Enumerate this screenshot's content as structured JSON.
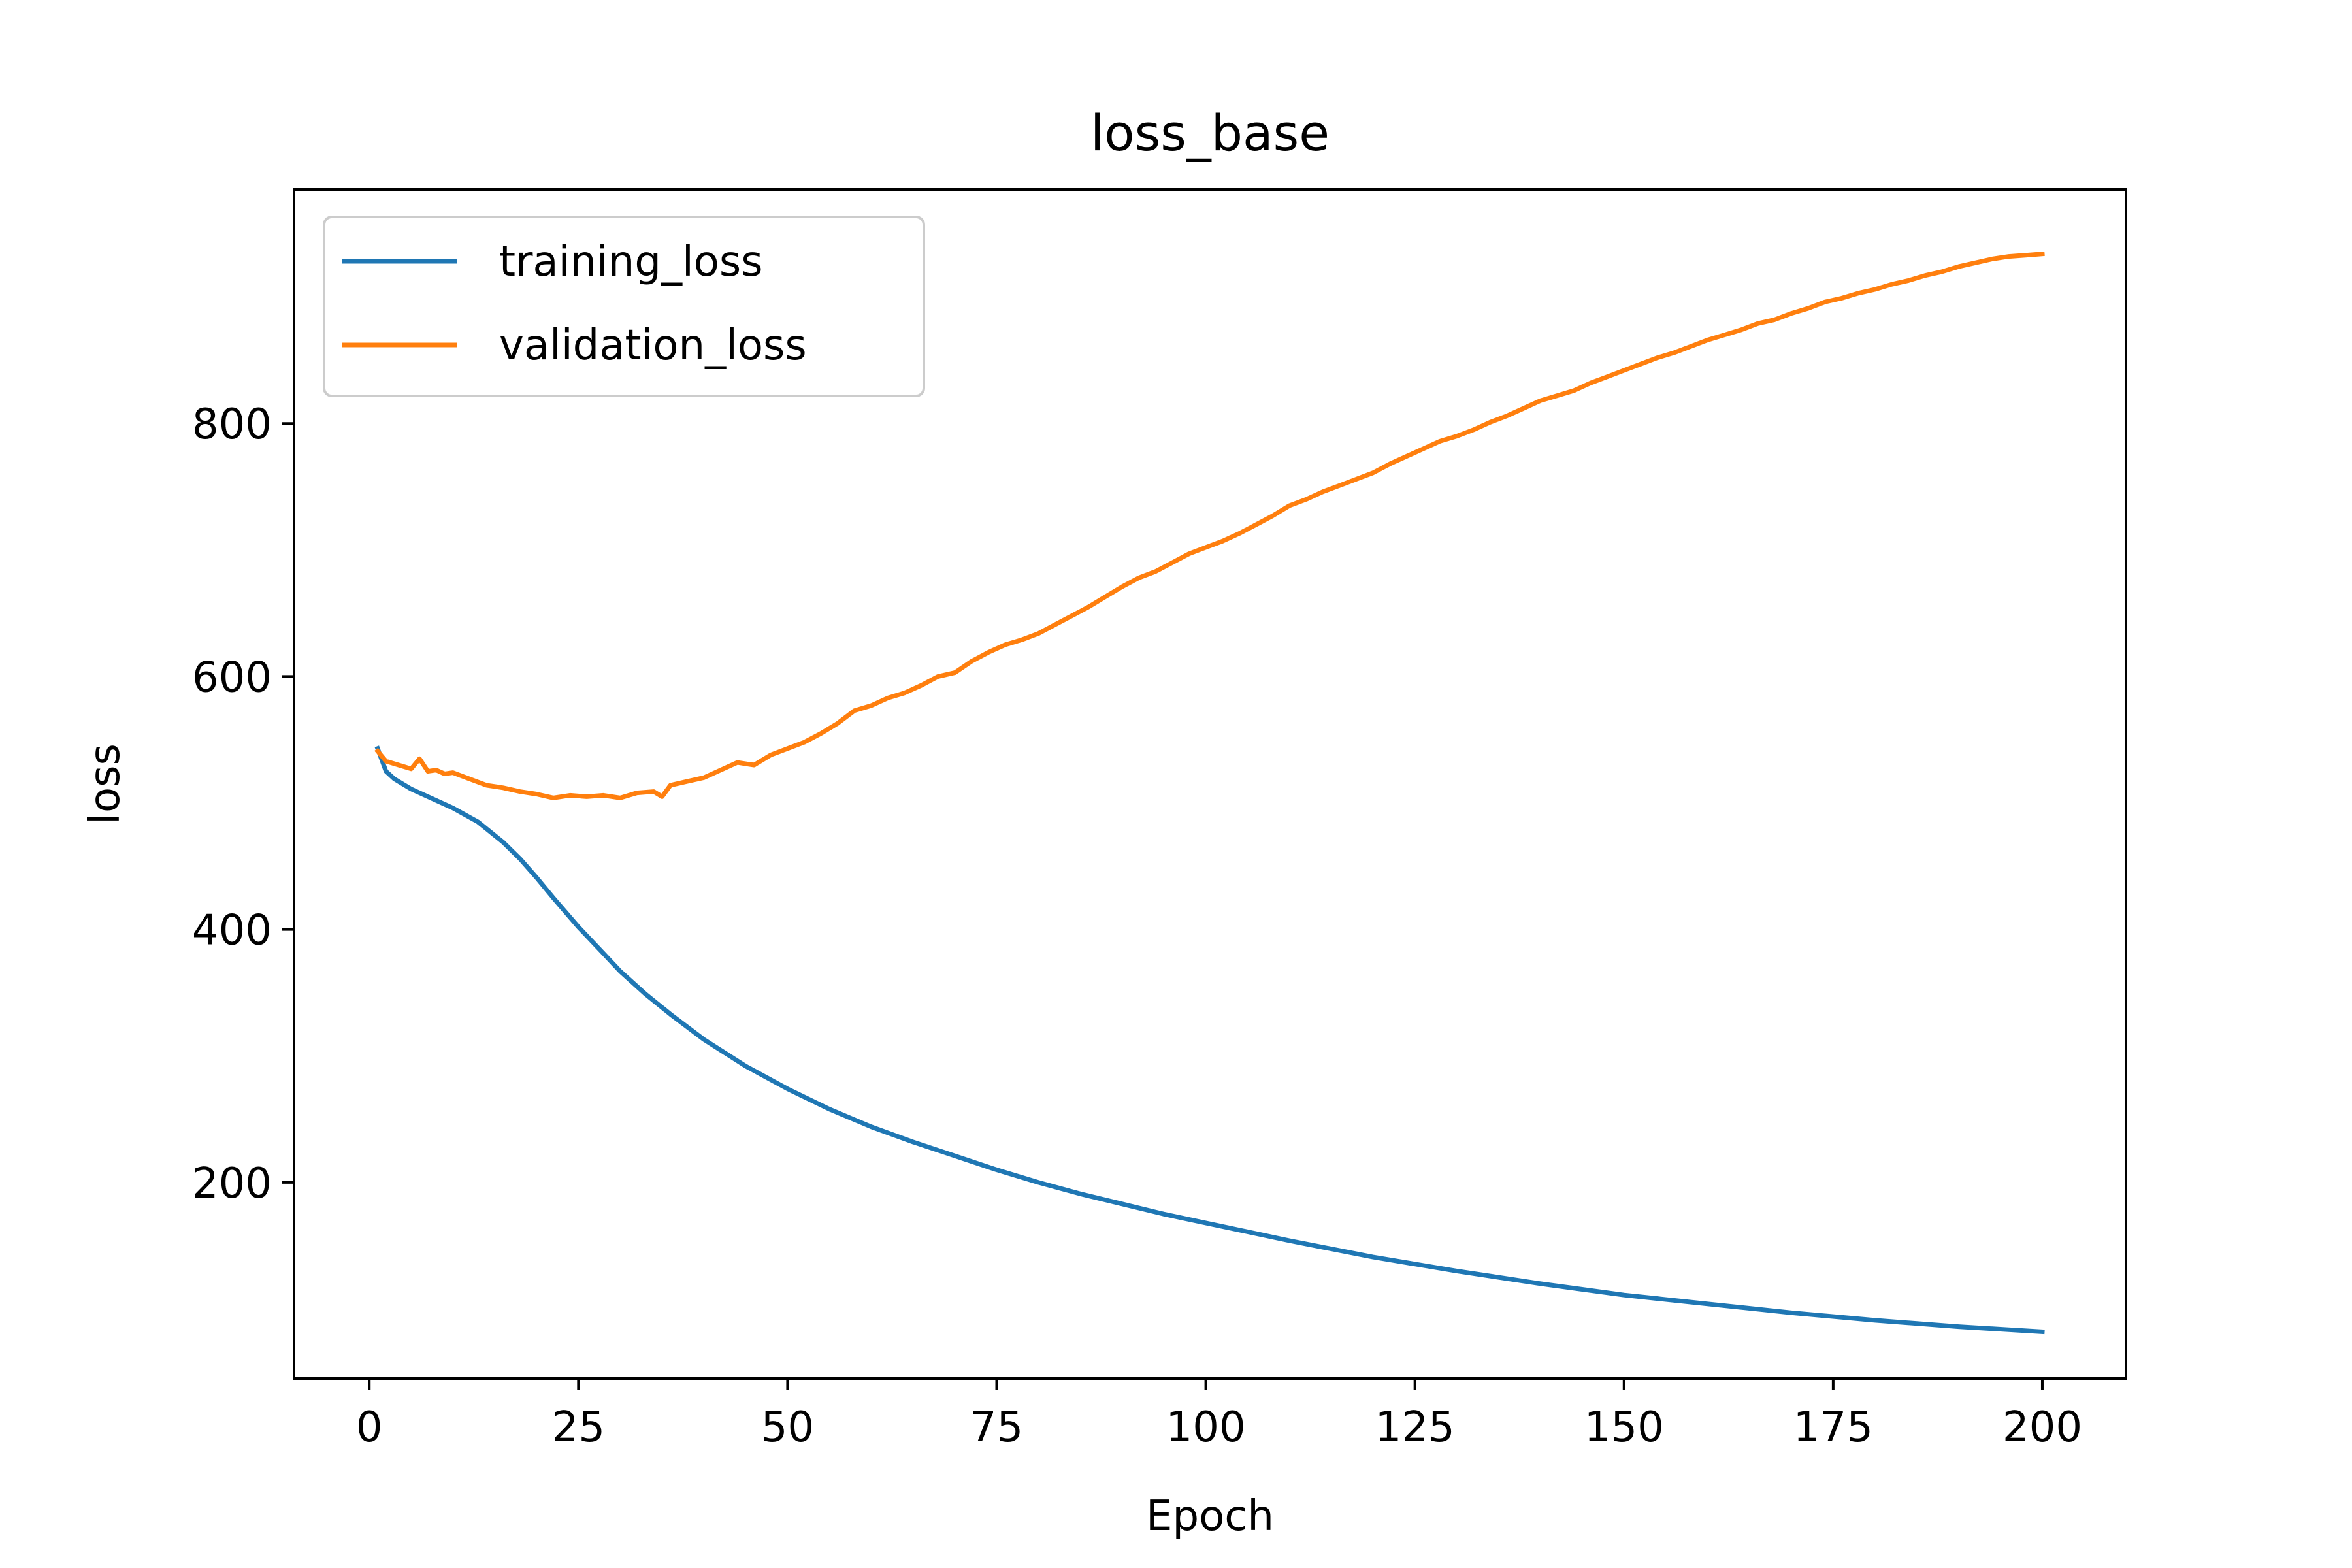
{
  "chart_data": {
    "type": "line",
    "title": "loss_base",
    "xlabel": "Epoch",
    "ylabel": "loss",
    "xlim": [
      -9,
      210
    ],
    "ylim": [
      45,
      985
    ],
    "xticks": [
      0,
      25,
      50,
      75,
      100,
      125,
      150,
      175,
      200
    ],
    "yticks": [
      200,
      400,
      600,
      800
    ],
    "legend": "upper-left",
    "grid": false,
    "colors": {
      "training_loss": "#1f77b4",
      "validation_loss": "#ff7f0e"
    },
    "series": [
      {
        "name": "training_loss",
        "color": "#1f77b4",
        "x": [
          1,
          2,
          3,
          5,
          8,
          10,
          13,
          16,
          18,
          20,
          22,
          25,
          28,
          30,
          33,
          36,
          40,
          45,
          50,
          55,
          60,
          65,
          70,
          75,
          80,
          85,
          90,
          95,
          100,
          110,
          120,
          130,
          140,
          150,
          160,
          170,
          180,
          190,
          195,
          200
        ],
        "values": [
          543,
          525,
          519,
          511,
          502,
          496,
          485,
          469,
          456,
          441,
          425,
          402,
          381,
          367,
          349,
          333,
          313,
          292,
          274,
          258,
          244,
          232,
          221,
          210,
          200,
          191,
          183,
          175,
          168,
          154,
          141,
          130,
          120,
          111,
          104,
          97,
          91,
          86,
          84,
          82
        ]
      },
      {
        "name": "validation_loss",
        "color": "#ff7f0e",
        "x": [
          1,
          2,
          3,
          4,
          5,
          6,
          7,
          8,
          9,
          10,
          12,
          14,
          16,
          18,
          20,
          22,
          24,
          26,
          28,
          30,
          32,
          34,
          35,
          36,
          38,
          40,
          42,
          44,
          46,
          48,
          50,
          52,
          54,
          56,
          58,
          60,
          62,
          64,
          66,
          68,
          70,
          72,
          74,
          76,
          78,
          80,
          82,
          84,
          86,
          88,
          90,
          92,
          94,
          96,
          98,
          100,
          102,
          104,
          106,
          108,
          110,
          112,
          114,
          116,
          118,
          120,
          122,
          124,
          126,
          128,
          130,
          132,
          134,
          136,
          138,
          140,
          142,
          144,
          146,
          148,
          150,
          152,
          154,
          156,
          158,
          160,
          162,
          164,
          166,
          168,
          170,
          172,
          174,
          176,
          178,
          180,
          182,
          184,
          186,
          188,
          190,
          192,
          194,
          196,
          198,
          200
        ],
        "values": [
          541,
          533,
          531,
          529,
          527,
          535,
          525,
          526,
          523,
          524,
          519,
          514,
          512,
          509,
          507,
          504,
          506,
          505,
          506,
          504,
          508,
          509,
          505,
          514,
          517,
          520,
          526,
          532,
          530,
          538,
          543,
          548,
          555,
          563,
          573,
          577,
          583,
          587,
          593,
          600,
          603,
          612,
          619,
          625,
          629,
          634,
          641,
          648,
          655,
          663,
          671,
          678,
          683,
          690,
          697,
          702,
          707,
          713,
          720,
          727,
          735,
          740,
          746,
          751,
          756,
          761,
          768,
          774,
          780,
          786,
          790,
          795,
          801,
          806,
          812,
          818,
          822,
          826,
          832,
          837,
          842,
          847,
          852,
          856,
          861,
          866,
          870,
          874,
          879,
          882,
          887,
          891,
          896,
          899,
          903,
          906,
          910,
          913,
          917,
          920,
          924,
          927,
          930,
          932,
          933,
          934
        ]
      }
    ]
  }
}
